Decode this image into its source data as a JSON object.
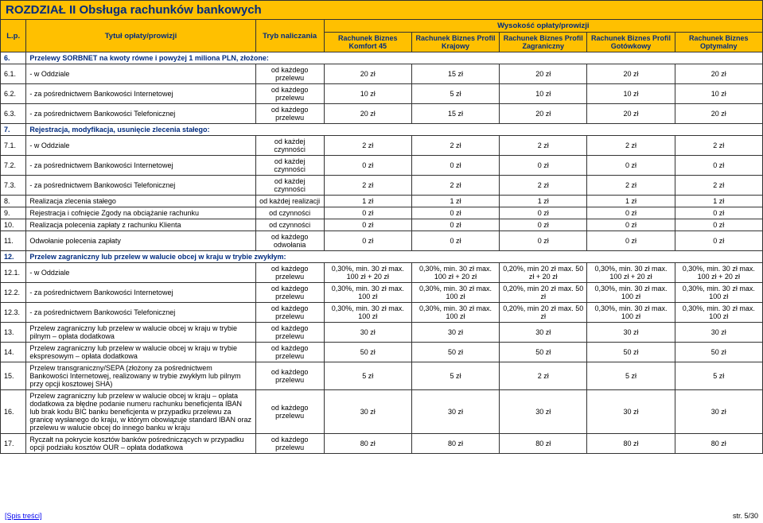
{
  "section_title": "ROZDZIAŁ II Obsługa rachunków bankowych",
  "head": {
    "lp": "L.p.",
    "title": "Tytuł opłaty/prowizji",
    "mode": "Tryb naliczania",
    "group": "Wysokość opłaty/prowizji",
    "acc1": "Rachunek Biznes Komfort 45",
    "acc2": "Rachunek Biznes Profil Krajowy",
    "acc3": "Rachunek Biznes Profil Zagraniczny",
    "acc4": "Rachunek Biznes Profil Gotówkowy",
    "acc5": "Rachunek Biznes Optymalny"
  },
  "rows": [
    {
      "type": "section",
      "lp": "6.",
      "title": "Przelewy SORBNET na kwoty równe i powyżej  1 miliona PLN, złożone:"
    },
    {
      "lp": "6.1.",
      "title": "- w Oddziale",
      "mode": "od każdego przelewu",
      "v": [
        "20 zł",
        "15 zł",
        "20 zł",
        "20 zł",
        "20 zł"
      ]
    },
    {
      "lp": "6.2.",
      "title": "- za pośrednictwem Bankowości Internetowej",
      "mode": "od każdego przelewu",
      "v": [
        "10 zł",
        "5 zł",
        "10 zł",
        "10 zł",
        "10 zł"
      ]
    },
    {
      "lp": "6.3.",
      "title": "- za pośrednictwem Bankowości Telefonicznej",
      "mode": "od każdego przelewu",
      "v": [
        "20 zł",
        "15 zł",
        "20 zł",
        "20 zł",
        "20 zł"
      ]
    },
    {
      "type": "section",
      "lp": "7.",
      "title": "Rejestracja, modyfikacja, usunięcie zlecenia stałego:"
    },
    {
      "lp": "7.1.",
      "title": "- w Oddziale",
      "mode": "od każdej czynności",
      "v": [
        "2 zł",
        "2 zł",
        "2 zł",
        "2 zł",
        "2 zł"
      ]
    },
    {
      "lp": "7.2.",
      "title": "- za pośrednictwem Bankowości Internetowej",
      "mode": "od każdej czynności",
      "v": [
        "0 zł",
        "0 zł",
        "0 zł",
        "0 zł",
        "0 zł"
      ]
    },
    {
      "lp": "7.3.",
      "title": "- za pośrednictwem Bankowości Telefonicznej",
      "mode": "od każdej czynności",
      "v": [
        "2 zł",
        "2 zł",
        "2 zł",
        "2 zł",
        "2 zł"
      ]
    },
    {
      "lp": "8.",
      "title": "Realizacja zlecenia stałego",
      "mode": "od każdej realizacji",
      "v": [
        "1 zł",
        "1 zł",
        "1 zł",
        "1 zł",
        "1 zł"
      ]
    },
    {
      "lp": "9.",
      "title": "Rejestracja i cofnięcie Zgody na obciążanie rachunku",
      "mode": "od czynności",
      "v": [
        "0 zł",
        "0 zł",
        "0 zł",
        "0 zł",
        "0 zł"
      ]
    },
    {
      "lp": "10.",
      "title": "Realizacja polecenia zapłaty z rachunku Klienta",
      "mode": "od czynności",
      "v": [
        "0 zł",
        "0 zł",
        "0 zł",
        "0 zł",
        "0 zł"
      ]
    },
    {
      "lp": "11.",
      "title": "Odwołanie polecenia zapłaty",
      "mode": "od każdego odwołania",
      "v": [
        "0 zł",
        "0 zł",
        "0 zł",
        "0 zł",
        "0 zł"
      ]
    },
    {
      "type": "section",
      "lp": "12.",
      "title": "Przelew zagraniczny lub przelew w walucie obcej w kraju w trybie zwykłym:"
    },
    {
      "lp": "12.1.",
      "title": "- w Oddziale",
      "mode": "od każdego przelewu",
      "v": [
        "0,30%, min. 30 zł max. 100 zł + 20 zł",
        "0,30%, min. 30 zł max. 100 zł + 20 zł",
        "0,20%, min 20 zł max. 50 zł + 20 zł",
        "0,30%, min. 30 zł max. 100 zł + 20 zł",
        "0,30%, min. 30 zł max. 100 zł + 20 zł"
      ]
    },
    {
      "lp": "12.2.",
      "title": "- za pośrednictwem Bankowości Internetowej",
      "mode": "od każdego przelewu",
      "v": [
        "0,30%, min.  30 zł max. 100 zł",
        "0,30%, min.  30 zł max. 100 zł",
        "0,20%, min 20 zł max. 50 zł",
        "0,30%, min.  30 zł max. 100 zł",
        "0,30%, min.  30 zł max. 100 zł"
      ]
    },
    {
      "lp": "12.3.",
      "title": "- za pośrednictwem Bankowości Telefonicznej",
      "mode": "od każdego przelewu",
      "v": [
        "0,30%, min.  30 zł max. 100 zł",
        "0,30%, min.  30 zł max. 100 zł",
        "0,20%, min 20 zł max. 50 zł",
        "0,30%, min.  30 zł max. 100 zł",
        "0,30%, min.  30 zł max. 100 zł"
      ]
    },
    {
      "lp": "13.",
      "title": "Przelew zagraniczny lub przelew w walucie obcej w kraju w trybie pilnym – opłata dodatkowa",
      "mode": "od każdego przelewu",
      "v": [
        "30 zł",
        "30 zł",
        "30 zł",
        "30 zł",
        "30 zł"
      ]
    },
    {
      "lp": "14.",
      "title": "Przelew zagraniczny lub przelew w walucie obcej w kraju w trybie ekspresowym – opłata dodatkowa",
      "mode": "od każdego przelewu",
      "v": [
        "50 zł",
        "50 zł",
        "50 zł",
        "50 zł",
        "50 zł"
      ]
    },
    {
      "lp": "15.",
      "title": "Przelew transgraniczny/SEPA (złożony za pośrednictwem Bankowości Internetowej, realizowany w trybie zwykłym lub pilnym przy opcji kosztowej SHA)",
      "mode": "od każdego przelewu",
      "v": [
        "5 zł",
        "5 zł",
        "2 zł",
        "5 zł",
        "5 zł"
      ]
    },
    {
      "lp": "16.",
      "title": "Przelew zagraniczny lub przelew w walucie obcej w kraju – opłata dodatkowa za błędne podanie numeru rachunku beneficjenta IBAN lub brak kodu BIC banku beneficjenta w przypadku przelewu za granicę wysłanego do kraju, w którym obowiązuje standard IBAN oraz przelewu w walucie obcej do innego banku w kraju",
      "mode": "od każdego przelewu",
      "v": [
        "30 zł",
        "30 zł",
        "30 zł",
        "30 zł",
        "30 zł"
      ]
    },
    {
      "lp": "17.",
      "title": "Ryczałt na pokrycie kosztów banków pośredniczących w przypadku opcji podziału kosztów OUR – opłata dodatkowa",
      "mode": "od każdego przelewu",
      "v": [
        "80 zł",
        "80 zł",
        "80 zł",
        "80 zł",
        "80 zł"
      ]
    }
  ],
  "footer_link": "[Spis treści]",
  "footer_page": "str. 5/30"
}
